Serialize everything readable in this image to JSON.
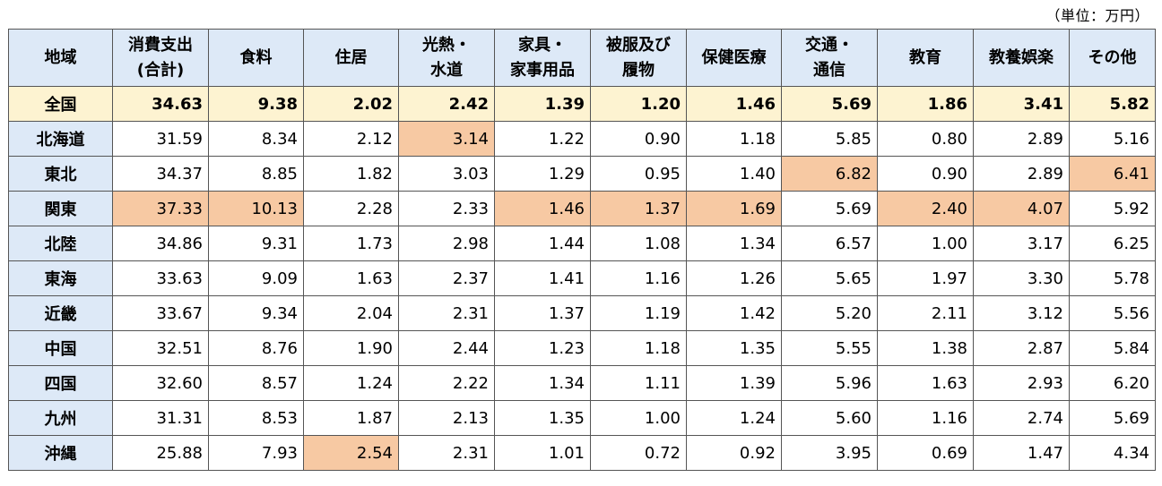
{
  "unit_label": "（単位：万円）",
  "colors": {
    "header_bg": "#dde9f7",
    "national_bg": "#fdf3d1",
    "highlight_bg": "#f7c9a3"
  },
  "columns": [
    "地域",
    "消費支出\n(合計)",
    "食料",
    "住居",
    "光熱・\n水道",
    "家具・\n家事用品",
    "被服及び\n履物",
    "保健医療",
    "交通・\n通信",
    "教育",
    "教養娯楽",
    "その他"
  ],
  "rows": [
    {
      "region": "全国",
      "values": [
        "34.63",
        "9.38",
        "2.02",
        "2.42",
        "1.39",
        "1.20",
        "1.46",
        "5.69",
        "1.86",
        "3.41",
        "5.82"
      ],
      "highlight": []
    },
    {
      "region": "北海道",
      "values": [
        "31.59",
        "8.34",
        "2.12",
        "3.14",
        "1.22",
        "0.90",
        "1.18",
        "5.85",
        "0.80",
        "2.89",
        "5.16"
      ],
      "highlight": [
        3
      ]
    },
    {
      "region": "東北",
      "values": [
        "34.37",
        "8.85",
        "1.82",
        "3.03",
        "1.29",
        "0.95",
        "1.40",
        "6.82",
        "0.90",
        "2.89",
        "6.41"
      ],
      "highlight": [
        7,
        10
      ]
    },
    {
      "region": "関東",
      "values": [
        "37.33",
        "10.13",
        "2.28",
        "2.33",
        "1.46",
        "1.37",
        "1.69",
        "5.69",
        "2.40",
        "4.07",
        "5.92"
      ],
      "highlight": [
        0,
        1,
        4,
        5,
        6,
        8,
        9
      ]
    },
    {
      "region": "北陸",
      "values": [
        "34.86",
        "9.31",
        "1.73",
        "2.98",
        "1.44",
        "1.08",
        "1.34",
        "6.57",
        "1.00",
        "3.17",
        "6.25"
      ],
      "highlight": []
    },
    {
      "region": "東海",
      "values": [
        "33.63",
        "9.09",
        "1.63",
        "2.37",
        "1.41",
        "1.16",
        "1.26",
        "5.65",
        "1.97",
        "3.30",
        "5.78"
      ],
      "highlight": []
    },
    {
      "region": "近畿",
      "values": [
        "33.67",
        "9.34",
        "2.04",
        "2.31",
        "1.37",
        "1.19",
        "1.42",
        "5.20",
        "2.11",
        "3.12",
        "5.56"
      ],
      "highlight": []
    },
    {
      "region": "中国",
      "values": [
        "32.51",
        "8.76",
        "1.90",
        "2.44",
        "1.23",
        "1.18",
        "1.35",
        "5.55",
        "1.38",
        "2.87",
        "5.84"
      ],
      "highlight": []
    },
    {
      "region": "四国",
      "values": [
        "32.60",
        "8.57",
        "1.24",
        "2.22",
        "1.34",
        "1.11",
        "1.39",
        "5.96",
        "1.63",
        "2.93",
        "6.20"
      ],
      "highlight": []
    },
    {
      "region": "九州",
      "values": [
        "31.31",
        "8.53",
        "1.87",
        "2.13",
        "1.35",
        "1.00",
        "1.24",
        "5.60",
        "1.16",
        "2.74",
        "5.69"
      ],
      "highlight": []
    },
    {
      "region": "沖縄",
      "values": [
        "25.88",
        "7.93",
        "2.54",
        "2.31",
        "1.01",
        "0.72",
        "0.92",
        "3.95",
        "0.69",
        "1.47",
        "4.34"
      ],
      "highlight": [
        2
      ]
    }
  ]
}
